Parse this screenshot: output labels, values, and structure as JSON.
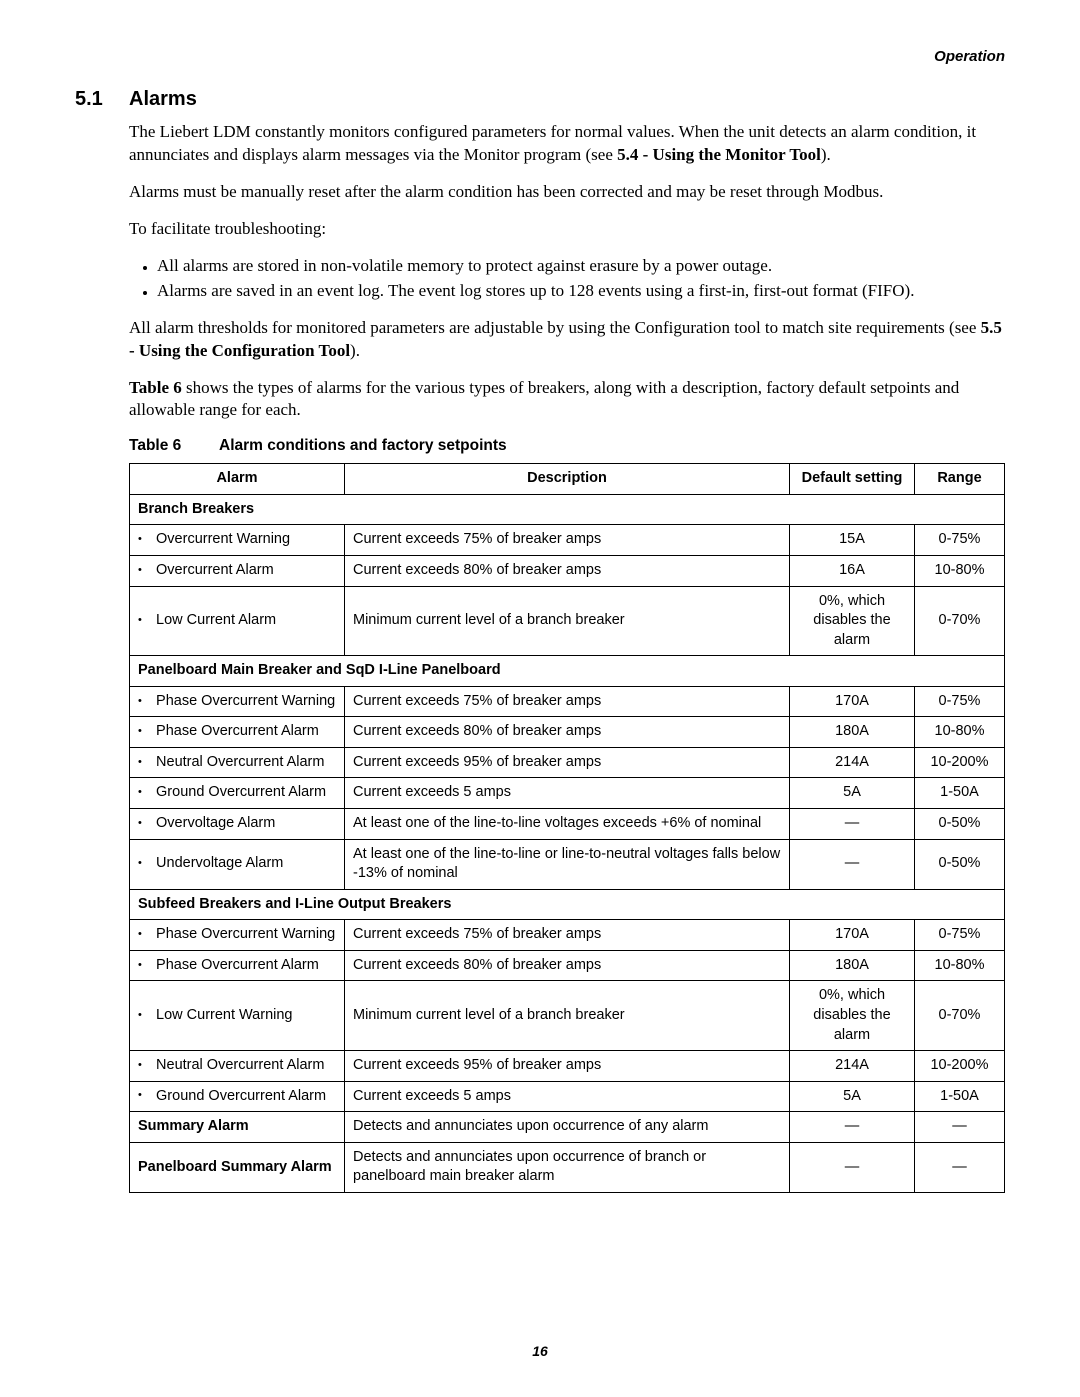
{
  "header": {
    "right": "Operation"
  },
  "section": {
    "number": "5.1",
    "title": "Alarms",
    "p1a": "The Liebert LDM constantly monitors configured parameters for normal values. When the unit detects an alarm condition, it annunciates and displays alarm messages via the Monitor program (see ",
    "p1b": "5.4 - Using the Monitor Tool",
    "p1c": ").",
    "p2": "Alarms must be manually reset after the alarm condition has been corrected and may be reset through Modbus.",
    "p3": "To facilitate troubleshooting:",
    "bullets": [
      "All alarms are stored in non-volatile memory to protect against erasure by a power outage.",
      "Alarms are saved in an event log. The event log stores up to 128 events using a first-in, first-out format (FIFO)."
    ],
    "p4a": "All alarm thresholds for monitored parameters are adjustable by using the Configuration tool to match site requirements (see ",
    "p4b": "5.5 - Using the Configuration Tool",
    "p4c": ").",
    "p5a": "Table 6",
    "p5b": " shows the types of alarms for the various types of breakers, along with a description, factory default setpoints and allowable range for each."
  },
  "table": {
    "label": "Table 6",
    "caption": "Alarm conditions and factory setpoints",
    "columns": [
      "Alarm",
      "Description",
      "Default setting",
      "Range"
    ],
    "sections": [
      {
        "heading": "Branch Breakers",
        "rows": [
          {
            "alarm": "Overcurrent Warning",
            "desc": "Current exceeds 75% of breaker amps",
            "def": "15A",
            "range": "0-75%"
          },
          {
            "alarm": "Overcurrent Alarm",
            "desc": "Current exceeds 80% of breaker amps",
            "def": "16A",
            "range": "10-80%"
          },
          {
            "alarm": "Low Current Alarm",
            "desc": "Minimum current level of a branch breaker",
            "def": "0%, which disables the alarm",
            "range": "0-70%"
          }
        ]
      },
      {
        "heading": "Panelboard Main Breaker and SqD I-Line Panelboard",
        "rows": [
          {
            "alarm": "Phase Overcurrent Warning",
            "desc": "Current exceeds 75% of breaker amps",
            "def": "170A",
            "range": "0-75%"
          },
          {
            "alarm": "Phase Overcurrent Alarm",
            "desc": "Current exceeds 80% of breaker amps",
            "def": "180A",
            "range": "10-80%"
          },
          {
            "alarm": "Neutral Overcurrent Alarm",
            "desc": "Current exceeds 95% of breaker amps",
            "def": "214A",
            "range": "10-200%"
          },
          {
            "alarm": "Ground Overcurrent Alarm",
            "desc": "Current exceeds 5 amps",
            "def": "5A",
            "range": "1-50A"
          },
          {
            "alarm": "Overvoltage Alarm",
            "desc": "At least one of the line-to-line voltages exceeds +6% of nominal",
            "def": "—",
            "range": "0-50%"
          },
          {
            "alarm": "Undervoltage Alarm",
            "desc": "At least one of the line-to-line or line-to-neutral voltages falls below -13% of nominal",
            "def": "—",
            "range": "0-50%"
          }
        ]
      },
      {
        "heading": "Subfeed Breakers and I-Line Output Breakers",
        "rows": [
          {
            "alarm": "Phase Overcurrent Warning",
            "desc": "Current exceeds 75% of breaker amps",
            "def": "170A",
            "range": "0-75%"
          },
          {
            "alarm": "Phase Overcurrent Alarm",
            "desc": "Current exceeds 80% of breaker amps",
            "def": "180A",
            "range": "10-80%"
          },
          {
            "alarm": "Low Current Warning",
            "desc": "Minimum current level of a branch breaker",
            "def": "0%, which disables the alarm",
            "range": "0-70%"
          },
          {
            "alarm": "Neutral Overcurrent Alarm",
            "desc": "Current exceeds 95% of breaker amps",
            "def": "214A",
            "range": "10-200%"
          },
          {
            "alarm": "Ground Overcurrent Alarm",
            "desc": "Current exceeds 5 amps",
            "def": "5A",
            "range": "1-50A"
          }
        ]
      }
    ],
    "summary_rows": [
      {
        "alarm": "Summary Alarm",
        "desc": "Detects and annunciates upon occurrence of any alarm",
        "def": "—",
        "range": "—"
      },
      {
        "alarm": "Panelboard Summary Alarm",
        "desc": "Detects and annunciates upon occurrence of branch or panelboard main breaker alarm",
        "def": "—",
        "range": "—"
      }
    ]
  },
  "footer": {
    "page": "16"
  }
}
